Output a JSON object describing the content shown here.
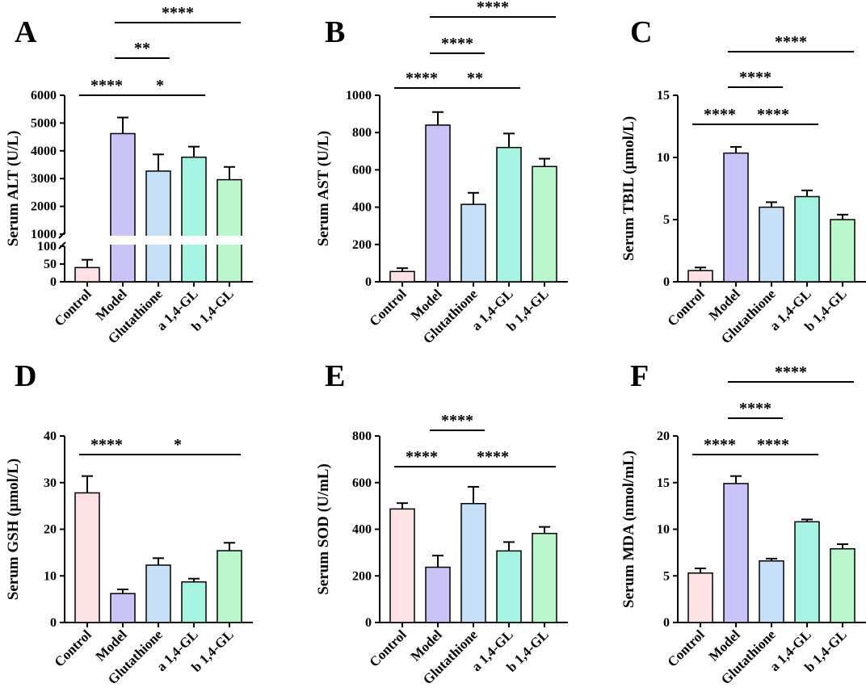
{
  "figure": {
    "colors": {
      "control": "#fde1e4",
      "model": "#c9c3f8",
      "glutathione": "#c6e0f8",
      "a14gl": "#a5f3e2",
      "b14gl": "#baf7cc",
      "edge": "#000000"
    }
  },
  "chart_data": [
    {
      "type": "bar",
      "panel": "A",
      "ylabel": "Serum ALT (U/L)",
      "categories": [
        "Control",
        "Model",
        "Glutathione",
        "a 1,4-GL",
        "b 1,4-GL"
      ],
      "values": [
        40,
        4620,
        3270,
        3770,
        2960
      ],
      "errors": [
        22,
        580,
        600,
        380,
        460
      ],
      "axis_break": true,
      "lower_segment": {
        "ylim": [
          0,
          100
        ],
        "ticks": [
          "0",
          "50",
          "100"
        ]
      },
      "upper_segment": {
        "ylim": [
          1000,
          6000
        ],
        "ticks": [
          "1000",
          "2000",
          "3000",
          "4000",
          "5000",
          "6000"
        ]
      },
      "significance": [
        {
          "from": "Control",
          "to": "Model",
          "label": "****"
        },
        {
          "from": "Model",
          "to": "a 1,4-GL",
          "label": "*"
        },
        {
          "from": "Model",
          "to": "Glutathione",
          "label": "**"
        },
        {
          "from": "Model",
          "to": "b 1,4-GL",
          "label": "****"
        }
      ]
    },
    {
      "type": "bar",
      "panel": "B",
      "ylabel": "Serum AST (U/L)",
      "categories": [
        "Control",
        "Model",
        "Glutathione",
        "a 1,4-GL",
        "b 1,4-GL"
      ],
      "values": [
        55,
        840,
        415,
        720,
        618
      ],
      "errors": [
        18,
        70,
        62,
        75,
        42
      ],
      "ylim": [
        0,
        1000
      ],
      "ticks": [
        "0",
        "200",
        "400",
        "600",
        "800",
        "1000"
      ],
      "significance": [
        {
          "from": "Control",
          "to": "Model",
          "label": "****"
        },
        {
          "from": "Model",
          "to": "a 1,4-GL",
          "label": "**"
        },
        {
          "from": "Model",
          "to": "Glutathione",
          "label": "****"
        },
        {
          "from": "Model",
          "to": "b 1,4-GL",
          "label": "****"
        }
      ]
    },
    {
      "type": "bar",
      "panel": "C",
      "ylabel": "Serum TBIL (μmol/L)",
      "categories": [
        "Control",
        "Model",
        "Glutathione",
        "a 1,4-GL",
        "b 1,4-GL"
      ],
      "values": [
        0.9,
        10.35,
        6.0,
        6.85,
        5.0
      ],
      "errors": [
        0.25,
        0.5,
        0.4,
        0.5,
        0.4
      ],
      "ylim": [
        0,
        15
      ],
      "ticks": [
        "0",
        "5",
        "10",
        "15"
      ],
      "significance": [
        {
          "from": "Control",
          "to": "Model",
          "label": "****"
        },
        {
          "from": "Model",
          "to": "a 1,4-GL",
          "label": "****"
        },
        {
          "from": "Model",
          "to": "Glutathione",
          "label": "****"
        },
        {
          "from": "Model",
          "to": "b 1,4-GL",
          "label": "****"
        }
      ]
    },
    {
      "type": "bar",
      "panel": "D",
      "ylabel": "Serum GSH (μmol/L)",
      "categories": [
        "Control",
        "Model",
        "Glutathione",
        "a 1,4-GL",
        "b 1,4-GL"
      ],
      "values": [
        27.8,
        6.2,
        12.3,
        8.7,
        15.4
      ],
      "errors": [
        3.6,
        0.9,
        1.5,
        0.7,
        1.7
      ],
      "ylim": [
        0,
        40
      ],
      "ticks": [
        "0",
        "10",
        "20",
        "30",
        "40"
      ],
      "significance": [
        {
          "from": "Control",
          "to": "Model",
          "label": "****"
        },
        {
          "from": "Model",
          "to": "b 1,4-GL",
          "label": "*"
        }
      ]
    },
    {
      "type": "bar",
      "panel": "E",
      "ylabel": "Serum SOD (U/mL)",
      "categories": [
        "Control",
        "Model",
        "Glutathione",
        "a 1,4-GL",
        "b 1,4-GL"
      ],
      "values": [
        487,
        237,
        510,
        307,
        382
      ],
      "errors": [
        25,
        50,
        72,
        38,
        28
      ],
      "ylim": [
        0,
        800
      ],
      "ticks": [
        "0",
        "200",
        "400",
        "600",
        "800"
      ],
      "significance": [
        {
          "from": "Control",
          "to": "Model",
          "label": "****"
        },
        {
          "from": "Model",
          "to": "b 1,4-GL",
          "label": "****"
        },
        {
          "from": "Model",
          "to": "Glutathione",
          "label": "****"
        }
      ]
    },
    {
      "type": "bar",
      "panel": "F",
      "ylabel": "Serum MDA (nmol/mL)",
      "categories": [
        "Control",
        "Model",
        "Glutathione",
        "a 1,4-GL",
        "b 1,4-GL"
      ],
      "values": [
        5.3,
        14.9,
        6.6,
        10.8,
        7.9
      ],
      "errors": [
        0.5,
        0.8,
        0.25,
        0.25,
        0.5
      ],
      "ylim": [
        0,
        20
      ],
      "ticks": [
        "0",
        "5",
        "10",
        "15",
        "20"
      ],
      "significance": [
        {
          "from": "Control",
          "to": "Model",
          "label": "****"
        },
        {
          "from": "Model",
          "to": "a 1,4-GL",
          "label": "****"
        },
        {
          "from": "Model",
          "to": "Glutathione",
          "label": "****"
        },
        {
          "from": "Model",
          "to": "b 1,4-GL",
          "label": "****"
        }
      ]
    }
  ]
}
